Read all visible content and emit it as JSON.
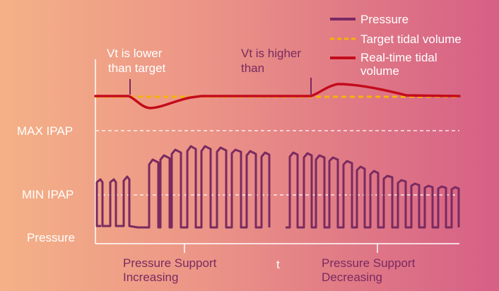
{
  "legend": {
    "pressure": "Pressure",
    "target": "Target tidal volume",
    "realtime_line1": "Real-time tidal",
    "realtime_line2": "volume"
  },
  "annotations": {
    "lower_line1": "Vt is lower",
    "lower_line2": "than target",
    "higher_line1": "Vt is higher",
    "higher_line2": "than"
  },
  "axis_labels": {
    "max_ipap": "MAX IPAP",
    "min_ipap": "MIN IPAP",
    "pressure": "Pressure",
    "t": "t"
  },
  "phases": {
    "increasing_line1": "Pressure Support",
    "increasing_line2": "Increasing",
    "decreasing_line1": "Pressure Support",
    "decreasing_line2": "Decreasing"
  },
  "colors": {
    "pressure": "#7a2a60",
    "target": "#f5b400",
    "realtime": "#c40b1c",
    "dashed_guides": "#ffffff"
  }
}
